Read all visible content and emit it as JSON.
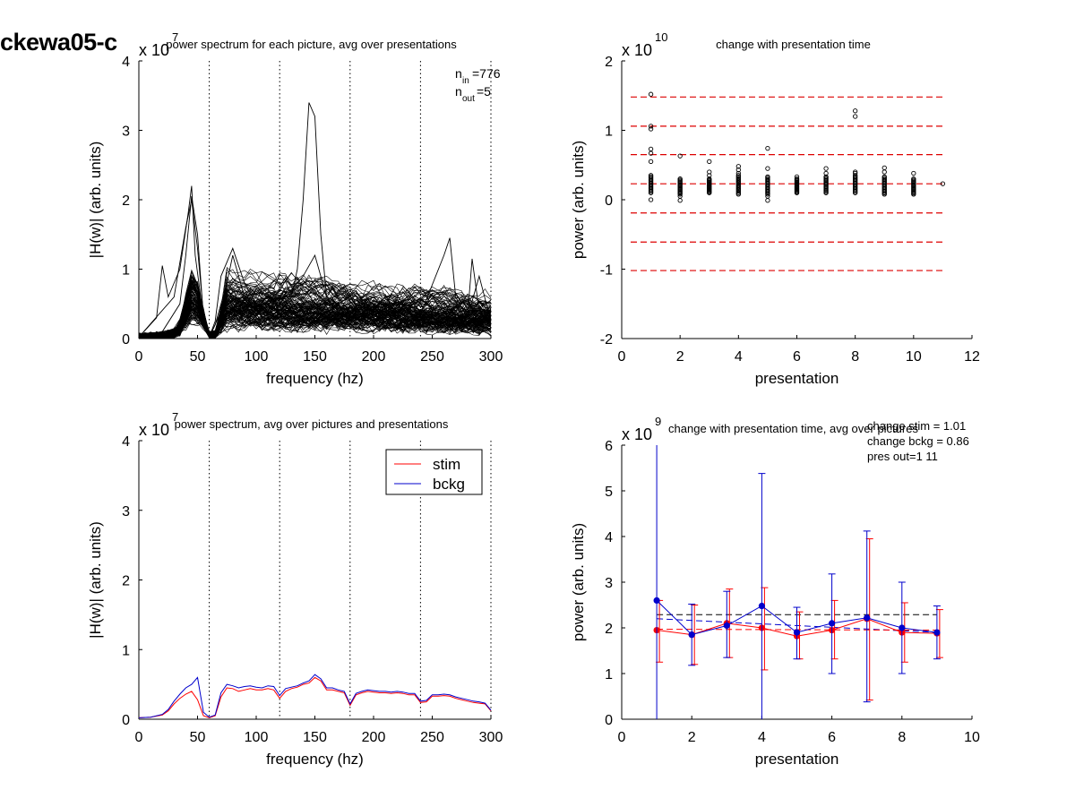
{
  "figure": {
    "title": "ckewa05-c"
  },
  "chart_data": [
    {
      "id": "p1",
      "type": "line",
      "title": "power spectrum for each picture, avg over presentations",
      "xlabel": "frequency (hz)",
      "ylabel": "|H(w)| (arb. units)",
      "exponent": "7",
      "xlim": [
        0,
        300
      ],
      "ylim": [
        0,
        4
      ],
      "xticks": [
        0,
        50,
        100,
        150,
        200,
        250,
        300
      ],
      "yticks": [
        0,
        1,
        2,
        3,
        4
      ],
      "vlines": [
        60,
        120,
        180,
        240,
        300
      ],
      "annotation_lines": [
        {
          "sym": "n",
          "sub": "in",
          "val": "=776"
        },
        {
          "sym": "n",
          "sub": "out",
          "val": "=5"
        }
      ],
      "bundle_count": 120,
      "highlight_series": [
        {
          "name": "",
          "x": [
            0,
            20,
            35,
            40,
            45,
            50,
            55,
            60,
            65,
            70,
            80,
            90,
            100,
            110,
            120,
            130,
            135,
            140,
            145,
            150,
            155,
            160,
            170,
            180,
            190,
            200,
            210,
            220,
            230,
            240,
            250,
            260,
            270,
            280,
            290,
            300
          ],
          "values": [
            0.02,
            0.1,
            0.5,
            1.2,
            2.05,
            1.5,
            0.3,
            0.02,
            0.2,
            0.4,
            0.45,
            0.5,
            0.45,
            0.5,
            0.4,
            0.6,
            1.0,
            2.0,
            3.4,
            3.2,
            1.5,
            0.6,
            0.4,
            0.45,
            0.35,
            0.4,
            0.35,
            0.4,
            0.3,
            0.35,
            0.4,
            0.3,
            0.35,
            0.3,
            0.25,
            0.22
          ]
        },
        {
          "name": "",
          "x": [
            0,
            15,
            20,
            25,
            35,
            42,
            45,
            48,
            55,
            60,
            65,
            75,
            80,
            90,
            100,
            110,
            120,
            140,
            160,
            180,
            200,
            220,
            240,
            260,
            265,
            270,
            280,
            290,
            300
          ],
          "values": [
            0.02,
            0.3,
            1.05,
            0.6,
            1.0,
            1.8,
            2.2,
            1.2,
            0.3,
            0.02,
            0.2,
            0.8,
            1.2,
            0.6,
            0.4,
            0.45,
            0.4,
            0.5,
            0.5,
            0.4,
            0.35,
            0.45,
            0.35,
            1.2,
            1.45,
            0.6,
            0.3,
            0.9,
            0.25
          ]
        },
        {
          "name": "",
          "x": [
            0,
            30,
            40,
            45,
            50,
            55,
            60,
            65,
            70,
            80,
            90,
            100,
            110,
            120,
            130,
            140,
            150,
            160,
            170,
            180,
            190,
            200,
            210,
            220,
            230,
            240,
            250,
            260,
            270,
            280,
            284,
            290,
            300
          ],
          "values": [
            0.02,
            0.6,
            1.6,
            2.0,
            1.3,
            0.35,
            0.02,
            0.25,
            0.9,
            1.3,
            0.8,
            0.5,
            0.6,
            0.5,
            0.7,
            0.9,
            1.2,
            0.6,
            0.5,
            0.6,
            0.5,
            0.45,
            0.5,
            0.4,
            0.45,
            0.3,
            0.45,
            0.4,
            0.35,
            0.3,
            1.15,
            0.4,
            0.2
          ]
        }
      ]
    },
    {
      "id": "p2",
      "type": "scatter",
      "title": "change with presentation time",
      "xlabel": "presentation",
      "ylabel": "power (arb. units)",
      "exponent": "10",
      "xlim": [
        0,
        12
      ],
      "ylim": [
        -2,
        2
      ],
      "xticks": [
        0,
        2,
        4,
        6,
        8,
        10,
        12
      ],
      "yticks": [
        -2,
        -1,
        0,
        1,
        2
      ],
      "hlines": [
        1.48,
        1.06,
        0.65,
        0.23,
        -0.19,
        -0.61,
        -1.02
      ],
      "column_bands": [
        {
          "x": 1,
          "lo": 0.1,
          "hi": 0.35
        },
        {
          "x": 2,
          "lo": 0.08,
          "hi": 0.3
        },
        {
          "x": 3,
          "lo": 0.1,
          "hi": 0.3
        },
        {
          "x": 4,
          "lo": 0.08,
          "hi": 0.35
        },
        {
          "x": 5,
          "lo": 0.08,
          "hi": 0.33
        },
        {
          "x": 6,
          "lo": 0.1,
          "hi": 0.3
        },
        {
          "x": 7,
          "lo": 0.1,
          "hi": 0.33
        },
        {
          "x": 8,
          "lo": 0.1,
          "hi": 0.35
        },
        {
          "x": 9,
          "lo": 0.08,
          "hi": 0.33
        },
        {
          "x": 10,
          "lo": 0.08,
          "hi": 0.3
        }
      ],
      "points": [
        [
          1,
          1.52
        ],
        [
          1,
          1.06
        ],
        [
          1,
          1.02
        ],
        [
          1,
          0.73
        ],
        [
          1,
          0.67
        ],
        [
          1,
          0.55
        ],
        [
          1,
          0.0
        ],
        [
          2,
          0.63
        ],
        [
          2,
          0.05
        ],
        [
          2,
          -0.01
        ],
        [
          3,
          0.55
        ],
        [
          3,
          0.4
        ],
        [
          3,
          0.35
        ],
        [
          4,
          0.48
        ],
        [
          4,
          0.43
        ],
        [
          4,
          0.38
        ],
        [
          5,
          0.74
        ],
        [
          5,
          0.45
        ],
        [
          5,
          0.05
        ],
        [
          5,
          -0.01
        ],
        [
          6,
          0.33
        ],
        [
          7,
          0.45
        ],
        [
          7,
          0.38
        ],
        [
          8,
          1.28
        ],
        [
          8,
          1.2
        ],
        [
          8,
          0.4
        ],
        [
          8,
          0.38
        ],
        [
          9,
          0.46
        ],
        [
          9,
          0.4
        ],
        [
          10,
          0.38
        ],
        [
          11,
          0.23
        ]
      ]
    },
    {
      "id": "p3",
      "type": "line",
      "title": "power spectrum, avg over pictures and presentations",
      "xlabel": "frequency (hz)",
      "ylabel": "|H(w)| (arb. units)",
      "exponent": "7",
      "xlim": [
        0,
        300
      ],
      "ylim": [
        0,
        4
      ],
      "xticks": [
        0,
        50,
        100,
        150,
        200,
        250,
        300
      ],
      "yticks": [
        0,
        1,
        2,
        3,
        4
      ],
      "vlines": [
        60,
        120,
        180,
        240,
        300
      ],
      "legend": {
        "position": "top-right"
      },
      "series": [
        {
          "name": "stim",
          "color": "#ff0000",
          "x": [
            0,
            10,
            20,
            25,
            30,
            35,
            40,
            45,
            50,
            55,
            60,
            65,
            70,
            75,
            80,
            85,
            90,
            95,
            100,
            105,
            110,
            115,
            120,
            125,
            130,
            135,
            140,
            145,
            150,
            155,
            160,
            165,
            170,
            175,
            180,
            185,
            190,
            195,
            200,
            205,
            210,
            215,
            220,
            225,
            230,
            235,
            240,
            245,
            250,
            255,
            260,
            265,
            270,
            275,
            280,
            285,
            290,
            295,
            300
          ],
          "values": [
            0.02,
            0.03,
            0.06,
            0.12,
            0.22,
            0.3,
            0.36,
            0.4,
            0.28,
            0.05,
            0.02,
            0.05,
            0.32,
            0.45,
            0.44,
            0.4,
            0.42,
            0.44,
            0.42,
            0.42,
            0.44,
            0.42,
            0.3,
            0.4,
            0.44,
            0.46,
            0.5,
            0.52,
            0.6,
            0.55,
            0.42,
            0.42,
            0.4,
            0.38,
            0.2,
            0.35,
            0.38,
            0.4,
            0.39,
            0.38,
            0.38,
            0.37,
            0.38,
            0.37,
            0.35,
            0.35,
            0.24,
            0.25,
            0.33,
            0.33,
            0.34,
            0.33,
            0.3,
            0.28,
            0.26,
            0.24,
            0.23,
            0.22,
            0.12
          ]
        },
        {
          "name": "bckg",
          "color": "#0000cc",
          "x": [
            0,
            10,
            20,
            25,
            30,
            35,
            40,
            45,
            50,
            55,
            60,
            65,
            70,
            75,
            80,
            85,
            90,
            95,
            100,
            105,
            110,
            115,
            120,
            125,
            130,
            135,
            140,
            145,
            150,
            155,
            160,
            165,
            170,
            175,
            180,
            185,
            190,
            195,
            200,
            205,
            210,
            215,
            220,
            225,
            230,
            235,
            240,
            245,
            250,
            255,
            260,
            265,
            270,
            275,
            280,
            285,
            290,
            295,
            300
          ],
          "values": [
            0.02,
            0.03,
            0.07,
            0.14,
            0.26,
            0.36,
            0.45,
            0.5,
            0.6,
            0.1,
            0.03,
            0.06,
            0.38,
            0.5,
            0.48,
            0.45,
            0.47,
            0.48,
            0.46,
            0.45,
            0.48,
            0.47,
            0.34,
            0.44,
            0.46,
            0.48,
            0.52,
            0.55,
            0.64,
            0.58,
            0.45,
            0.45,
            0.42,
            0.4,
            0.22,
            0.37,
            0.4,
            0.42,
            0.41,
            0.4,
            0.4,
            0.39,
            0.4,
            0.39,
            0.37,
            0.37,
            0.26,
            0.27,
            0.35,
            0.35,
            0.36,
            0.35,
            0.32,
            0.3,
            0.28,
            0.26,
            0.25,
            0.23,
            0.13
          ]
        }
      ]
    },
    {
      "id": "p4",
      "type": "line",
      "title": "change with presentation time, avg over pictures",
      "xlabel": "presentation",
      "ylabel": "power (arb. units)",
      "exponent": "9",
      "xlim": [
        0,
        10
      ],
      "ylim": [
        0,
        6
      ],
      "xticks": [
        0,
        2,
        4,
        6,
        8,
        10
      ],
      "yticks": [
        0,
        1,
        2,
        3,
        4,
        5,
        6
      ],
      "annotation_lines": [
        "change stim = 1.01",
        "change bckg = 0.86",
        "pres out=1 11"
      ],
      "ref_lines": [
        {
          "name": "",
          "color": "#000000",
          "y": [
            2.29,
            2.29
          ],
          "x": [
            1,
            9
          ]
        },
        {
          "name": "",
          "color": "#0000cc",
          "y": [
            2.2,
            1.9
          ],
          "x": [
            1,
            9
          ]
        },
        {
          "name": "",
          "color": "#ff0000",
          "y": [
            1.97,
            1.95
          ],
          "x": [
            1,
            9
          ]
        }
      ],
      "series": [
        {
          "name": "stim",
          "color": "#ff0000",
          "x": [
            1,
            2,
            3,
            4,
            5,
            6,
            7,
            8,
            9
          ],
          "values": [
            1.95,
            1.85,
            2.1,
            2.0,
            1.82,
            1.95,
            2.2,
            1.9,
            1.88
          ],
          "err_low": [
            1.25,
            1.2,
            1.35,
            1.08,
            1.32,
            1.32,
            0.42,
            1.25,
            1.35
          ],
          "err_high": [
            2.6,
            2.5,
            2.85,
            2.88,
            2.35,
            2.6,
            3.95,
            2.55,
            2.4
          ]
        },
        {
          "name": "bckg",
          "color": "#0000cc",
          "x": [
            1,
            2,
            3,
            4,
            5,
            6,
            7,
            8,
            9
          ],
          "values": [
            2.6,
            1.85,
            2.05,
            2.48,
            1.9,
            2.1,
            2.22,
            2.0,
            1.9
          ],
          "err_low": [
            0,
            1.18,
            1.35,
            0,
            1.32,
            1.0,
            0.38,
            1.0,
            1.32
          ],
          "err_high": [
            6.2,
            2.52,
            2.8,
            5.38,
            2.45,
            3.18,
            4.12,
            3.0,
            2.48
          ]
        }
      ]
    }
  ]
}
